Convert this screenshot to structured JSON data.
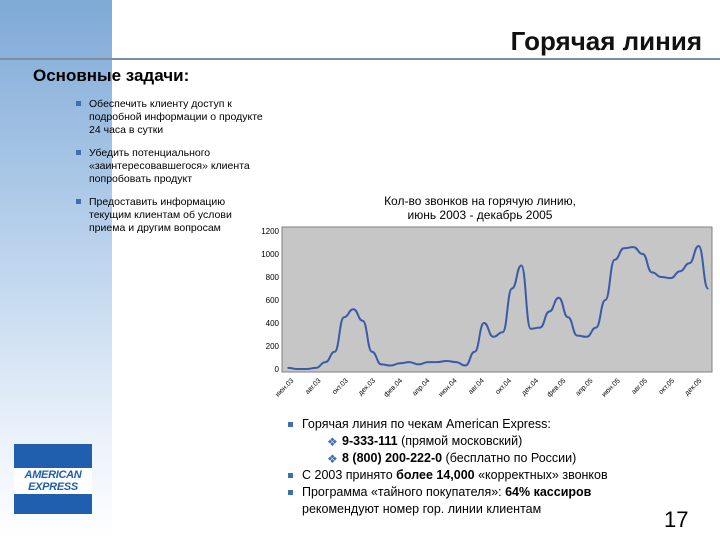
{
  "slide": {
    "title": "Горячая линия",
    "section_heading": "Основные задачи:",
    "tasks": [
      "Обеспечить клиенту доступ к подробной информации о продукте 24 часа в сутки",
      "Убедить потенциального «заинтересовавшегося» клиента попробовать продукт",
      "Предоставить информацию текущим клиентам об услови приема и другим вопросам"
    ],
    "info": {
      "line1": "Горячая линия по чекам American Express:",
      "phone1_number": "9-333-111",
      "phone1_note": " (прямой московский)",
      "phone2_number": "8 (800) 200-222-0",
      "phone2_note": " (бесплатно по России)",
      "line4_pre": "С 2003 принято ",
      "line4_bold": "более 14,000",
      "line4_post": " «корректных» звонков",
      "line5_pre": "Программа «тайного покупателя»: ",
      "line5_bold": "64% кассиров",
      "line6": "рекомендуют номер гор. линии клиентам"
    },
    "logo_line1": "AMERICAN",
    "logo_line2": "EXPRESS",
    "page_number": "17",
    "accent_color": "#3f6fb3",
    "line_color": "#3b5ba9"
  },
  "chart_data": {
    "type": "line",
    "title_line1": "Кол-во звонков на горячую линию,",
    "title_line2": "июнь 2003 - декабрь 2005",
    "ylim": [
      0,
      1200
    ],
    "yticks": [
      0,
      200,
      400,
      600,
      800,
      1000,
      1200
    ],
    "ytick_labels": [
      "0",
      "200",
      "400",
      "600",
      "800",
      "1000",
      "1200"
    ],
    "xtick_labels": [
      "июн.03",
      "авг.03",
      "окт.03",
      "дек.03",
      "фев.04",
      "апр.04",
      "июн.04",
      "авг.04",
      "окт.04",
      "дек.04",
      "фев.05",
      "апр.05",
      "июн.05",
      "авг.05",
      "окт.05",
      "дек.05"
    ],
    "grid": false,
    "values": [
      10,
      0,
      0,
      10,
      60,
      150,
      450,
      520,
      420,
      150,
      40,
      30,
      50,
      60,
      40,
      60,
      60,
      70,
      60,
      30,
      150,
      400,
      280,
      320,
      700,
      900,
      350,
      360,
      500,
      620,
      450,
      290,
      280,
      360,
      600,
      950,
      1050,
      1060,
      1000,
      840,
      800,
      790,
      850,
      920,
      1070,
      700
    ]
  }
}
